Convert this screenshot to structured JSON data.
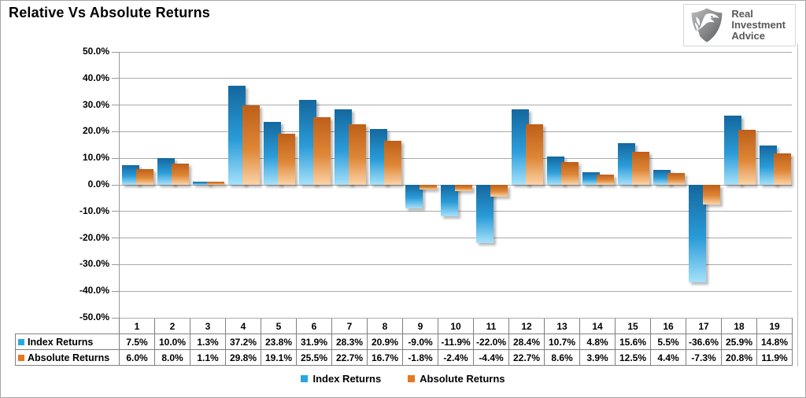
{
  "title": "Relative Vs Absolute Returns",
  "logo": {
    "icon": "eagle-shield-icon",
    "line1": "Real",
    "line2": "Investment",
    "line3": "Advice"
  },
  "colors": {
    "index_dark": "#14679E",
    "index_mid": "#2B9CD9",
    "index_light": "#A6E1FA",
    "absolute_dark": "#BE5F19",
    "absolute_mid": "#DE8636",
    "absolute_light": "#FBD3A6",
    "index_key": "#29A8E0",
    "absolute_key": "#E8771E",
    "gridline": "#AAAAAA",
    "table_border": "#7F7F7F"
  },
  "y_axis": {
    "ticks": [
      "50.0%",
      "40.0%",
      "30.0%",
      "20.0%",
      "10.0%",
      "0.0%",
      "-10.0%",
      "-20.0%",
      "-30.0%",
      "-40.0%",
      "-50.0%"
    ]
  },
  "chart_data": {
    "type": "bar",
    "categories": [
      "1",
      "2",
      "3",
      "4",
      "5",
      "6",
      "7",
      "8",
      "9",
      "10",
      "11",
      "12",
      "13",
      "14",
      "15",
      "16",
      "17",
      "18",
      "19"
    ],
    "series": [
      {
        "name": "Index Returns",
        "values": [
          7.5,
          10.0,
          1.3,
          37.2,
          23.8,
          31.9,
          28.3,
          20.9,
          -9.0,
          -11.9,
          -22.0,
          28.4,
          10.7,
          4.8,
          15.6,
          5.5,
          -36.6,
          25.9,
          14.8
        ]
      },
      {
        "name": "Absolute Returns",
        "values": [
          6.0,
          8.0,
          1.1,
          29.8,
          19.1,
          25.5,
          22.7,
          16.7,
          -1.8,
          -2.4,
          -4.4,
          22.7,
          8.6,
          3.9,
          12.5,
          4.4,
          -7.3,
          20.8,
          11.9
        ]
      }
    ],
    "title": "Relative Vs Absolute Returns",
    "xlabel": "",
    "ylabel": "",
    "ylim": [
      -50,
      50
    ],
    "ytick_step": 10,
    "value_format": "percent_1dp",
    "grid": true,
    "legend_position": "bottom",
    "data_table_below_axis": true
  },
  "table": {
    "row_labels": [
      "Index Returns",
      "Absolute Returns"
    ]
  },
  "legend": {
    "items": [
      {
        "label": "Index Returns"
      },
      {
        "label": "Absolute Returns"
      }
    ]
  }
}
